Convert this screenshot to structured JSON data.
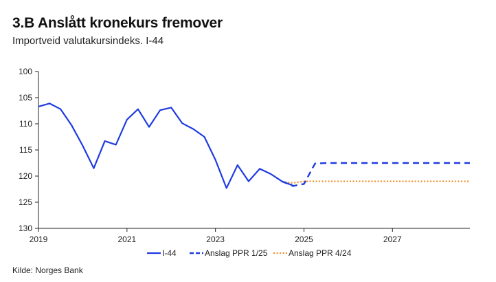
{
  "header": {
    "title": "3.B Anslått kronekurs fremover",
    "subtitle": "Importveid valutakursindeks. I-44"
  },
  "footer": {
    "source": "Kilde: Norges Bank"
  },
  "colors": {
    "actual": "#1f3be0",
    "forecast_125": "#1f3be0",
    "forecast_424": "#f28c28",
    "axis": "#222222"
  },
  "chart_data": {
    "type": "line",
    "title": "3.B Anslått kronekurs fremover",
    "subtitle": "Importveid valutakursindeks. I-44",
    "xlabel": "",
    "ylabel": "",
    "xlim": [
      2019.0,
      2028.75
    ],
    "ylim": [
      130,
      100
    ],
    "y_inverted": true,
    "x_ticks": [
      2019,
      2021,
      2023,
      2025,
      2027
    ],
    "y_ticks": [
      100,
      105,
      110,
      115,
      120,
      125,
      130
    ],
    "grid": false,
    "legend_position": "bottom",
    "series": [
      {
        "name": "I-44",
        "style": "solid",
        "points": [
          [
            2019.0,
            106.7
          ],
          [
            2019.25,
            106.1
          ],
          [
            2019.5,
            107.2
          ],
          [
            2019.75,
            110.3
          ],
          [
            2020.0,
            114.2
          ],
          [
            2020.25,
            118.5
          ],
          [
            2020.5,
            113.3
          ],
          [
            2020.75,
            114.0
          ],
          [
            2021.0,
            109.2
          ],
          [
            2021.25,
            107.2
          ],
          [
            2021.5,
            110.6
          ],
          [
            2021.75,
            107.4
          ],
          [
            2022.0,
            106.9
          ],
          [
            2022.25,
            109.9
          ],
          [
            2022.5,
            111.0
          ],
          [
            2022.75,
            112.5
          ],
          [
            2023.0,
            116.9
          ],
          [
            2023.25,
            122.3
          ],
          [
            2023.5,
            117.9
          ],
          [
            2023.75,
            121.0
          ],
          [
            2024.0,
            118.6
          ],
          [
            2024.25,
            119.6
          ],
          [
            2024.5,
            121.0
          ],
          [
            2024.75,
            121.8
          ]
        ]
      },
      {
        "name": "Anslag PPR 1/25",
        "style": "dashed",
        "points": [
          [
            2024.5,
            121.0
          ],
          [
            2024.75,
            121.9
          ],
          [
            2025.0,
            121.5
          ],
          [
            2025.25,
            117.6
          ],
          [
            2025.5,
            117.5
          ],
          [
            2026.0,
            117.5
          ],
          [
            2027.0,
            117.5
          ],
          [
            2028.0,
            117.5
          ],
          [
            2028.75,
            117.5
          ]
        ]
      },
      {
        "name": "Anslag PPR 4/24",
        "style": "dotted",
        "points": [
          [
            2024.5,
            121.1
          ],
          [
            2024.75,
            121.3
          ],
          [
            2025.0,
            121.0
          ],
          [
            2026.0,
            121.0
          ],
          [
            2027.0,
            121.0
          ],
          [
            2028.0,
            121.0
          ],
          [
            2028.75,
            121.0
          ]
        ]
      }
    ]
  }
}
